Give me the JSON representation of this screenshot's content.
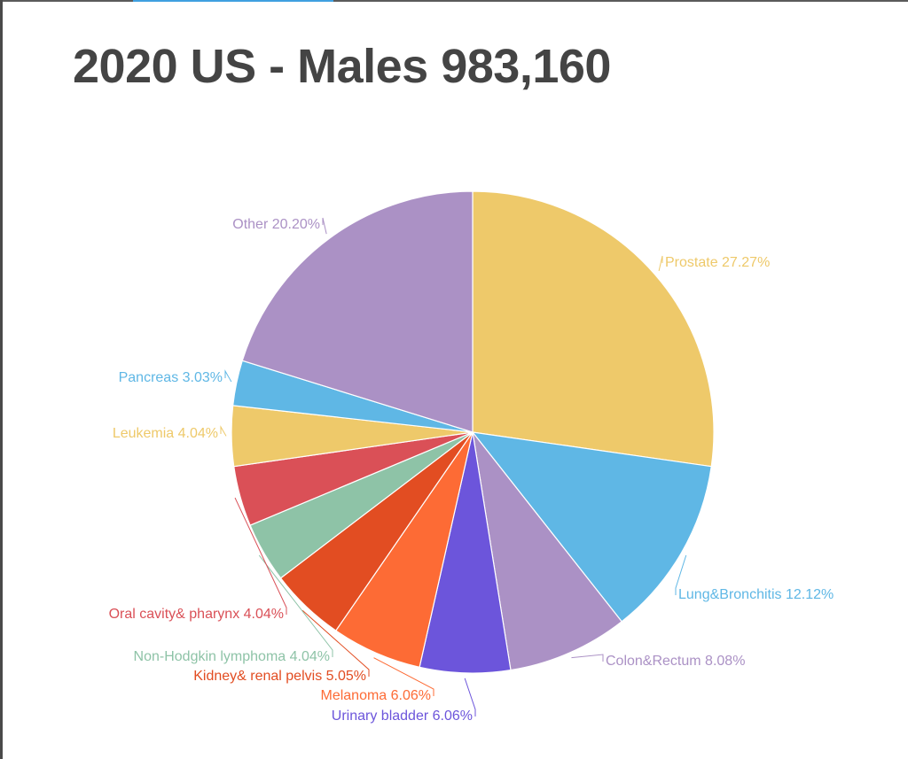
{
  "chart_data": {
    "type": "pie",
    "title": "2020 US - Males 983,160",
    "start_angle": "top",
    "direction": "clockwise",
    "slices": [
      {
        "label": "Prostate",
        "value": 27.27,
        "display": "Prostate 27.27%",
        "color": "#EEC96A"
      },
      {
        "label": "Lung&Bronchitis",
        "value": 12.12,
        "display": "Lung&Bronchitis 12.12%",
        "color": "#5FB7E5"
      },
      {
        "label": "Colon&Rectum",
        "value": 8.08,
        "display": "Colon&Rectum 8.08%",
        "color": "#AB91C5"
      },
      {
        "label": "Urinary bladder",
        "value": 6.06,
        "display": "Urinary bladder 6.06%",
        "color": "#6C55DB"
      },
      {
        "label": "Melanoma",
        "value": 6.06,
        "display": "Melanoma 6.06%",
        "color": "#FD6B35"
      },
      {
        "label": "Kidney& renal pelvis",
        "value": 5.05,
        "display": "Kidney& renal pelvis 5.05%",
        "color": "#E24D22"
      },
      {
        "label": "Non-Hodgkin lymphoma",
        "value": 4.04,
        "display": "Non-Hodgkin lymphoma 4.04%",
        "color": "#8EC3A7"
      },
      {
        "label": "Oral cavity& pharynx",
        "value": 4.04,
        "display": "Oral cavity& pharynx 4.04%",
        "color": "#DA5057"
      },
      {
        "label": "Leukemia",
        "value": 4.04,
        "display": "Leukemia 4.04%",
        "color": "#EEC96A"
      },
      {
        "label": "Pancreas",
        "value": 3.03,
        "display": "Pancreas 3.03%",
        "color": "#5FB7E5"
      },
      {
        "label": "Other",
        "value": 20.2,
        "display": "Other 20.20%",
        "color": "#AB91C5"
      }
    ]
  }
}
